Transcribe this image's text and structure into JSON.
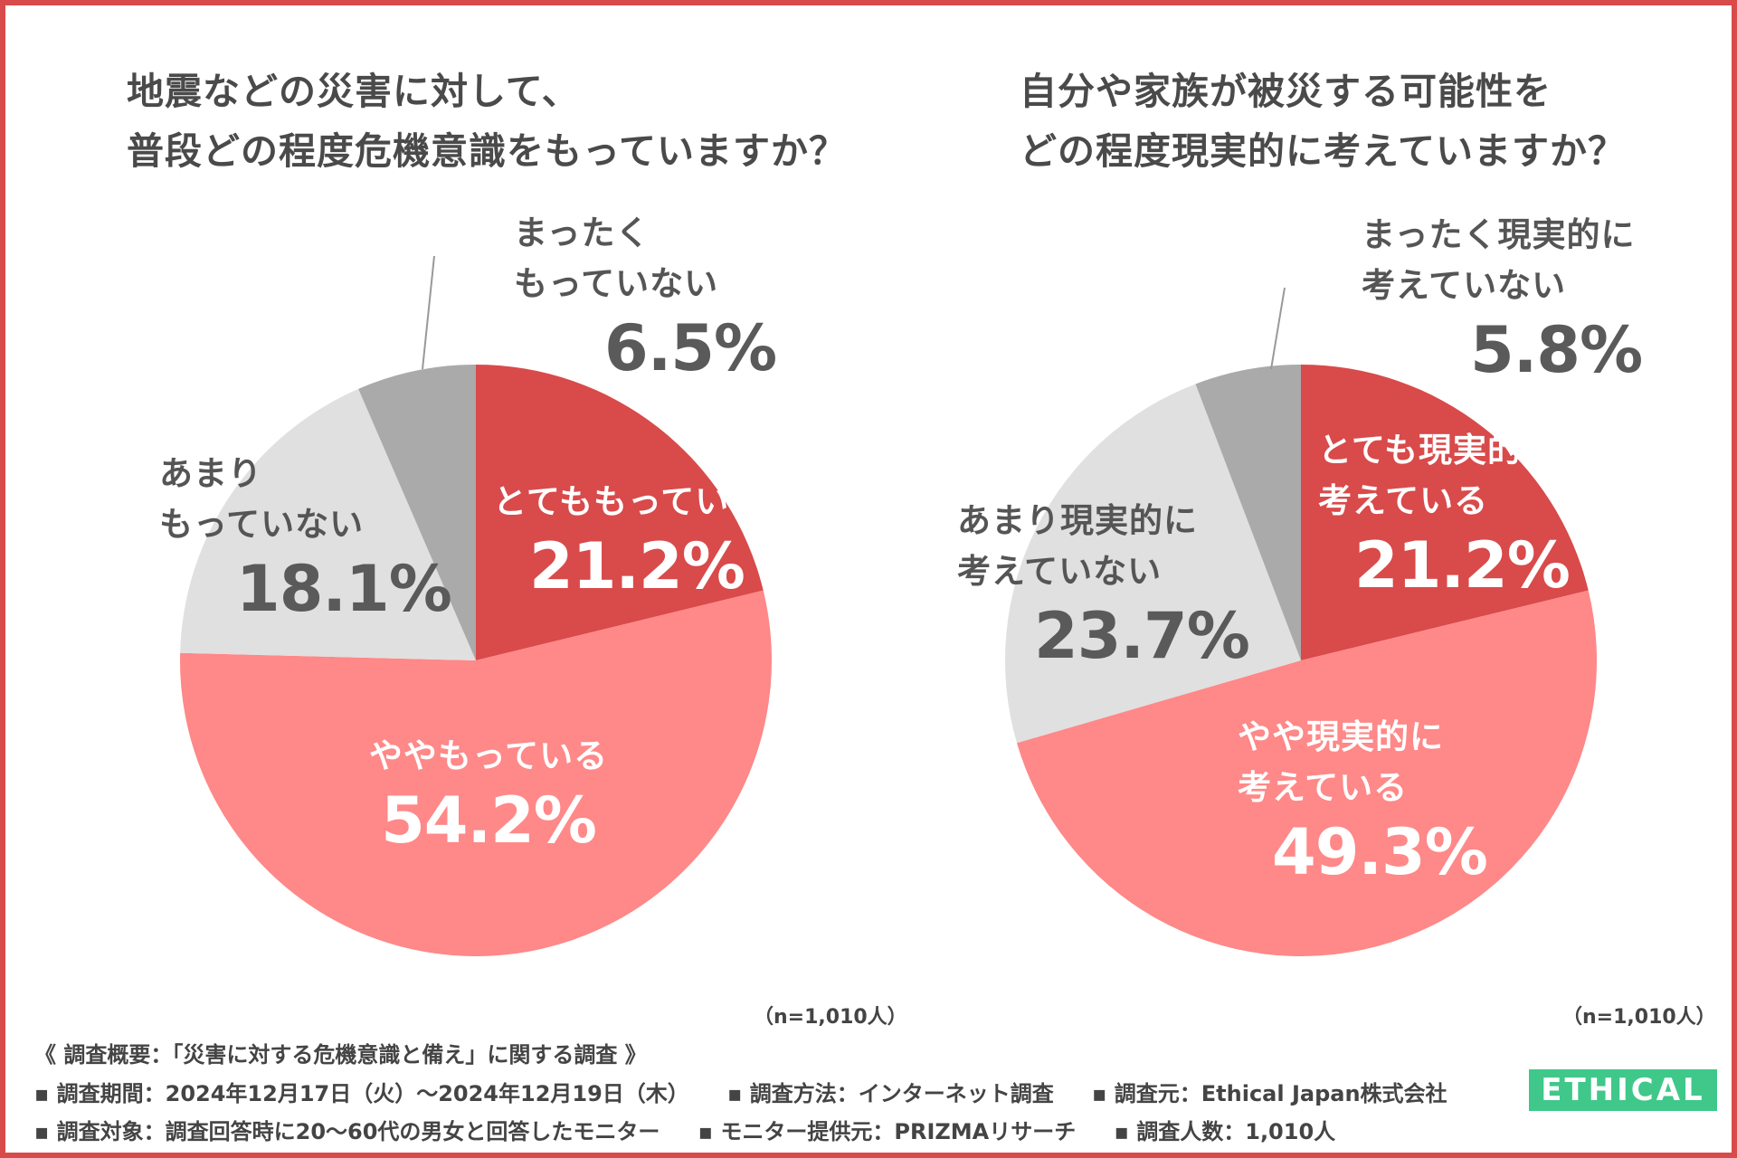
{
  "colors": {
    "border": "#d94a4a",
    "slices": [
      "#d94a4a",
      "#ff8888",
      "#e0e0e0",
      "#aaaaaa"
    ],
    "logo_bg": "#3fc88a"
  },
  "chart_data": [
    {
      "type": "pie",
      "title": [
        "地震などの災害に対して、",
        "普段どの程度危機意識をもっていますか？"
      ],
      "categories": [
        "とてももっている",
        "ややもっている",
        "あまりもっていない",
        "まったくもっていない"
      ],
      "category_label_lines": [
        [
          "とてももっている"
        ],
        [
          "ややもっている"
        ],
        [
          "あまり",
          "もっていない"
        ],
        [
          "まったく",
          "もっていない"
        ]
      ],
      "values": [
        21.2,
        54.2,
        18.1,
        6.5
      ],
      "value_labels": [
        "21.2%",
        "54.2%",
        "18.1%",
        "6.5%"
      ],
      "note": "（n=1,010人）"
    },
    {
      "type": "pie",
      "title": [
        "自分や家族が被災する可能性を",
        "どの程度現実的に考えていますか？"
      ],
      "categories": [
        "とても現実的に考えている",
        "やや現実的に考えている",
        "あまり現実的に考えていない",
        "まったく現実的に考えていない"
      ],
      "category_label_lines": [
        [
          "とても現実的に",
          "考えている"
        ],
        [
          "やや現実的に",
          "考えている"
        ],
        [
          "あまり現実的に",
          "考えていない"
        ],
        [
          "まったく現実的に",
          "考えていない"
        ]
      ],
      "values": [
        21.2,
        49.3,
        23.7,
        5.8
      ],
      "value_labels": [
        "21.2%",
        "49.3%",
        "23.7%",
        "5.8%"
      ],
      "note": "（n=1,010人）"
    }
  ],
  "footer": {
    "summary": "《 調査概要：「災害に対する危機意識と備え」に関する調査 》",
    "line1": [
      "▪ 調査期間：2024年12月17日（火）〜2024年12月19日（木）",
      "▪ 調査方法：インターネット調査",
      "▪ 調査元：Ethical Japan株式会社"
    ],
    "line2": [
      "▪ 調査対象：調査回答時に20〜60代の男女と回答したモニター",
      "▪ モニター提供元：PRIZMAリサーチ",
      "▪ 調査人数：1,010人"
    ]
  },
  "logo": {
    "text": "ETHICAL"
  }
}
